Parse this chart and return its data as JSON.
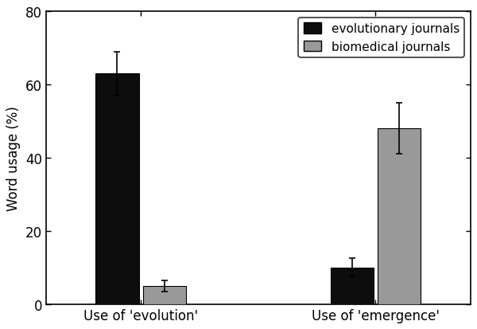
{
  "groups": [
    "Use of 'evolution'",
    "Use of 'emergence'"
  ],
  "series": [
    "evolutionary journals",
    "biomedical journals"
  ],
  "values": [
    [
      63,
      5
    ],
    [
      10,
      48
    ]
  ],
  "errors": [
    [
      6,
      1.5
    ],
    [
      2.5,
      7
    ]
  ],
  "bar_colors": [
    "#0d0d0d",
    "#999999"
  ],
  "bar_width": 0.22,
  "group_centers": [
    1.0,
    2.2
  ],
  "bar_gap": 0.24,
  "ylabel": "Word usage (%)",
  "ylim": [
    0,
    80
  ],
  "yticks": [
    0,
    20,
    40,
    60,
    80
  ],
  "legend_loc": "upper right",
  "background_color": "#ffffff",
  "edge_color": "#000000",
  "error_capsize": 3,
  "error_color": "#000000",
  "error_linewidth": 1.2,
  "tick_fontsize": 12,
  "label_fontsize": 12,
  "legend_fontsize": 11,
  "spine_linewidth": 1.2
}
